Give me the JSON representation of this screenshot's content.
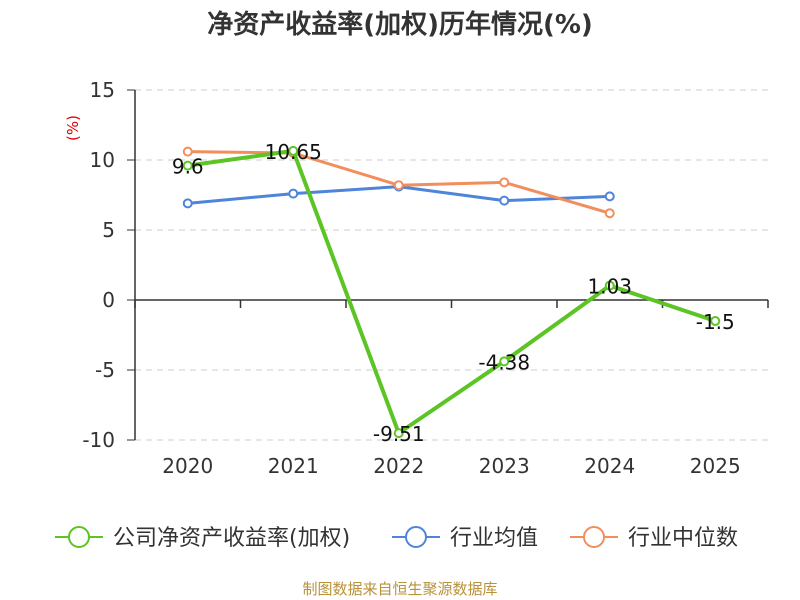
{
  "chart_data": {
    "type": "line",
    "title": "净资产收益率(加权)历年情况(%)",
    "ylabel": "(%)",
    "categories": [
      "2020",
      "2021",
      "2022",
      "2023",
      "2024",
      "2025"
    ],
    "ylim": [
      -10,
      15
    ],
    "yticks": [
      15,
      10,
      5,
      0,
      -5,
      -10
    ],
    "grid": true,
    "legend_position": "bottom",
    "series": [
      {
        "name": "公司净资产收益率(加权)",
        "color": "#5cc424",
        "values": [
          9.6,
          10.65,
          -9.51,
          -4.38,
          1.03,
          -1.5
        ],
        "labels": [
          "9.6",
          "10.65",
          "-9.51",
          "-4.38",
          "1.03",
          "-1.5"
        ]
      },
      {
        "name": "行业均值",
        "color": "#4e84d9",
        "values": [
          6.9,
          7.6,
          8.1,
          7.1,
          7.4,
          null
        ],
        "labels": []
      },
      {
        "name": "行业中位数",
        "color": "#f28d5c",
        "values": [
          10.6,
          10.5,
          8.2,
          8.4,
          6.2,
          null
        ],
        "labels": []
      }
    ]
  },
  "source": "制图数据来自恒生聚源数据库"
}
